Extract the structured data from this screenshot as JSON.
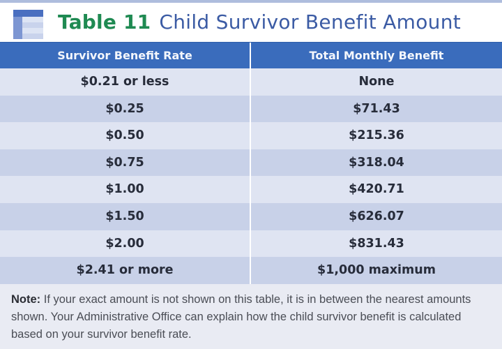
{
  "header": {
    "table_number": "Table 11",
    "title": "Child Survivor Benefit Amount",
    "icon": "table-icon",
    "colors": {
      "number": "#1f8a52",
      "title": "#3b5ba4",
      "header_bg": "#3a6cbc"
    }
  },
  "table": {
    "columns": [
      "Survivor Benefit Rate",
      "Total Monthly Benefit"
    ],
    "rows": [
      [
        "$0.21 or less",
        "None"
      ],
      [
        "$0.25",
        "$71.43"
      ],
      [
        "$0.50",
        "$215.36"
      ],
      [
        "$0.75",
        "$318.04"
      ],
      [
        "$1.00",
        "$420.71"
      ],
      [
        "$1.50",
        "$626.07"
      ],
      [
        "$2.00",
        "$831.43"
      ],
      [
        "$2.41 or more",
        "$1,000 maximum"
      ]
    ]
  },
  "note": {
    "label": "Note:",
    "text": " If your exact amount is not shown on this table, it is in between the nearest amounts shown. Your Administrative Office can explain how the child survivor benefit is calculated based on your survivor benefit rate."
  }
}
